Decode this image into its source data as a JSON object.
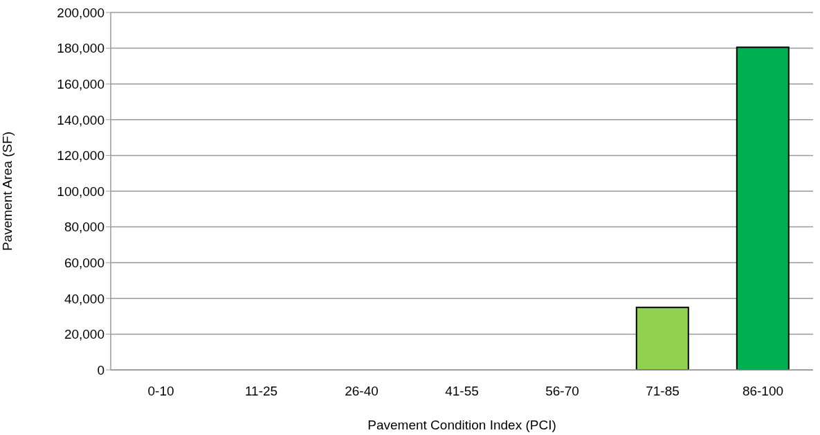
{
  "chart_data": {
    "type": "bar",
    "xlabel": "Pavement Condition Index (PCI)",
    "ylabel": "Pavement Area (SF)",
    "categories": [
      "0-10",
      "11-25",
      "26-40",
      "41-55",
      "56-70",
      "71-85",
      "86-100"
    ],
    "values": [
      0,
      0,
      0,
      0,
      0,
      35000,
      180500
    ],
    "colors": [
      null,
      null,
      null,
      null,
      null,
      "#92d050",
      "#00b050"
    ],
    "ylim": [
      0,
      200000
    ],
    "yticks": [
      {
        "value": 0,
        "label": "0"
      },
      {
        "value": 20000,
        "label": "20,000"
      },
      {
        "value": 40000,
        "label": "40,000"
      },
      {
        "value": 60000,
        "label": "60,000"
      },
      {
        "value": 80000,
        "label": "80,000"
      },
      {
        "value": 100000,
        "label": "100,000"
      },
      {
        "value": 120000,
        "label": "120,000"
      },
      {
        "value": 140000,
        "label": "140,000"
      },
      {
        "value": 160000,
        "label": "160,000"
      },
      {
        "value": 180000,
        "label": "180,000"
      },
      {
        "value": 200000,
        "label": "200,000"
      }
    ],
    "grid": "y"
  }
}
